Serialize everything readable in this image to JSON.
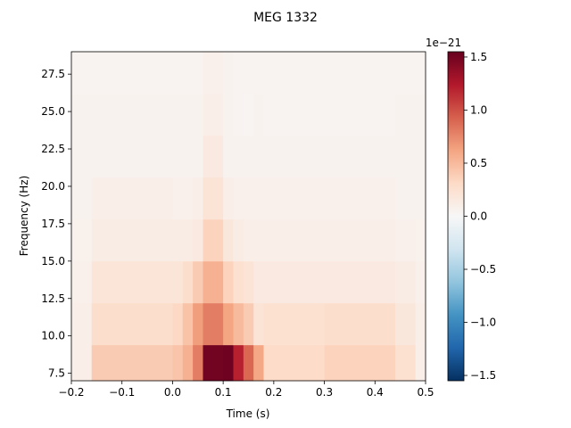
{
  "chart_data": {
    "type": "heatmap",
    "title": "MEG 1332",
    "xlabel": "Time (s)",
    "ylabel": "Frequency (Hz)",
    "xlim": [
      -0.2,
      0.5
    ],
    "ylim": [
      7.0,
      29.0
    ],
    "x_ticks": [
      -0.2,
      -0.1,
      0.0,
      0.1,
      0.2,
      0.3,
      0.4,
      0.5
    ],
    "x_tick_labels": [
      "−0.2",
      "−0.1",
      "0.0",
      "0.1",
      "0.2",
      "0.3",
      "0.4",
      "0.5"
    ],
    "y_ticks": [
      7.5,
      10.0,
      12.5,
      15.0,
      17.5,
      20.0,
      22.5,
      25.0,
      27.5
    ],
    "y_tick_labels": [
      "7.5",
      "10.0",
      "12.5",
      "15.0",
      "17.5",
      "20.0",
      "22.5",
      "25.0",
      "27.5"
    ],
    "frequencies": [
      8,
      10.8,
      13.6,
      16.4,
      19.2,
      22,
      24.8,
      27.6
    ],
    "time_edges": [
      -0.2,
      -0.16,
      0.0,
      0.02,
      0.04,
      0.06,
      0.1,
      0.12,
      0.14,
      0.16,
      0.18,
      0.3,
      0.44,
      0.48,
      0.5
    ],
    "values_e21": [
      [
        0.1,
        0.4,
        0.44,
        0.55,
        0.8,
        1.5,
        1.52,
        1.2,
        0.9,
        0.6,
        0.3,
        0.35,
        0.25,
        0.1
      ],
      [
        0.1,
        0.28,
        0.32,
        0.45,
        0.65,
        0.8,
        0.62,
        0.5,
        0.4,
        0.22,
        0.25,
        0.28,
        0.18,
        0.1
      ],
      [
        0.08,
        0.2,
        0.2,
        0.28,
        0.4,
        0.55,
        0.35,
        0.25,
        0.22,
        0.15,
        0.15,
        0.15,
        0.12,
        0.08
      ],
      [
        0.07,
        0.12,
        0.12,
        0.12,
        0.15,
        0.35,
        0.18,
        0.12,
        0.1,
        0.1,
        0.1,
        0.1,
        0.08,
        0.07
      ],
      [
        0.06,
        0.1,
        0.08,
        0.08,
        0.1,
        0.22,
        0.1,
        0.08,
        0.08,
        0.08,
        0.08,
        0.08,
        0.06,
        0.06
      ],
      [
        0.05,
        0.06,
        0.05,
        0.05,
        0.06,
        0.15,
        0.06,
        0.06,
        0.05,
        0.05,
        0.05,
        0.05,
        0.05,
        0.05
      ],
      [
        0.05,
        0.05,
        0.05,
        0.05,
        0.05,
        0.1,
        0.05,
        0.04,
        0.03,
        0.05,
        0.04,
        0.04,
        0.05,
        0.05
      ],
      [
        0.04,
        0.04,
        0.04,
        0.04,
        0.04,
        0.08,
        0.05,
        0.04,
        0.04,
        0.04,
        0.04,
        0.04,
        0.04,
        0.04
      ]
    ],
    "colorbar": {
      "colormap": "RdBu_r",
      "vmin": -1.55,
      "vmax": 1.55,
      "ticks": [
        -1.5,
        -1.0,
        -0.5,
        0.0,
        0.5,
        1.0,
        1.5
      ],
      "tick_labels": [
        "−1.5",
        "−1.0",
        "−0.5",
        "0.0",
        "0.5",
        "1.0",
        "1.5"
      ],
      "offset_label": "1e−21"
    },
    "grid": false
  }
}
